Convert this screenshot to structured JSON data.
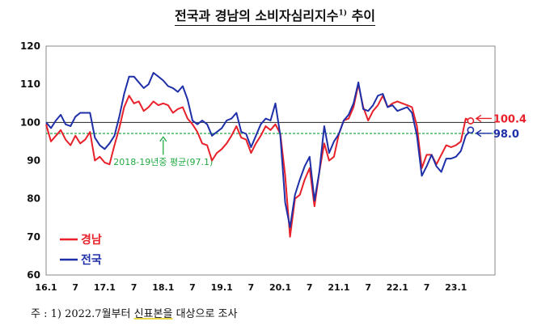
{
  "title": {
    "main": "전국과 경남의 소비자심리지수",
    "sup": "1)",
    "suffix": " 추이"
  },
  "footnote": {
    "prefix": "주 : 1) 2022.7월부터 ",
    "highlight": "신표본을",
    "suffix": " 대상으로 조사"
  },
  "chart_data": {
    "type": "line",
    "ylim": [
      60,
      120
    ],
    "yticks": [
      60,
      70,
      80,
      90,
      100,
      110,
      120
    ],
    "xlabels": [
      "16.1",
      "7",
      "17.1",
      "7",
      "18.1",
      "7",
      "19.1",
      "7",
      "20.1",
      "7",
      "21.1",
      "7",
      "22.1",
      "7",
      "23.1"
    ],
    "xlabel_months": [
      0,
      6,
      12,
      18,
      24,
      30,
      36,
      42,
      48,
      54,
      60,
      66,
      72,
      78,
      84
    ],
    "x_range_months": [
      0,
      92
    ],
    "reference_line": {
      "value": 100
    },
    "average_line": {
      "value": 97.1,
      "label": "2018-19년중 평균(97.1)",
      "color": "#22aa44"
    },
    "end_labels": [
      {
        "series": "경남",
        "value": 100.4,
        "label": "100.4"
      },
      {
        "series": "전국",
        "value": 98.0,
        "label": "98.0"
      }
    ],
    "series": [
      {
        "name": "경남",
        "color": "#e8202a",
        "values": [
          99.5,
          95.0,
          96.5,
          98.0,
          95.5,
          94.0,
          96.5,
          94.5,
          95.5,
          97.5,
          90.0,
          91.0,
          89.5,
          89.0,
          94.0,
          98.5,
          104.0,
          107.0,
          105.0,
          105.5,
          103.0,
          104.0,
          105.5,
          104.5,
          105.0,
          104.5,
          102.5,
          103.5,
          104.0,
          101.0,
          99.5,
          97.5,
          94.5,
          94.0,
          90.0,
          92.0,
          93.0,
          94.5,
          96.5,
          99.0,
          96.0,
          95.5,
          92.0,
          94.5,
          96.5,
          99.0,
          98.0,
          99.5,
          97.0,
          86.0,
          70.0,
          80.0,
          81.0,
          85.0,
          88.0,
          78.0,
          87.0,
          94.5,
          90.0,
          91.0,
          97.0,
          100.5,
          101.0,
          104.0,
          110.0,
          104.0,
          100.5,
          103.0,
          104.5,
          107.0,
          104.0,
          105.0,
          105.5,
          105.0,
          104.5,
          104.0,
          99.0,
          88.0,
          91.5,
          91.5,
          89.0,
          91.5,
          94.0,
          93.5,
          94.0,
          95.0,
          101.0,
          100.4
        ]
      },
      {
        "name": "전국",
        "color": "#1f2fa8",
        "values": [
          100.0,
          98.5,
          100.5,
          102.0,
          99.5,
          99.0,
          101.5,
          102.5,
          102.5,
          102.5,
          96.0,
          94.0,
          93.0,
          94.5,
          96.5,
          101.5,
          107.5,
          112.0,
          112.0,
          110.5,
          109.0,
          110.0,
          113.0,
          112.0,
          111.0,
          109.5,
          109.0,
          108.0,
          109.5,
          106.0,
          100.5,
          99.5,
          100.5,
          99.5,
          96.5,
          97.5,
          98.5,
          100.5,
          101.0,
          102.5,
          97.5,
          97.0,
          93.5,
          96.5,
          99.5,
          101.0,
          100.5,
          105.0,
          96.5,
          79.0,
          72.5,
          81.0,
          85.0,
          88.5,
          91.0,
          79.5,
          87.0,
          99.0,
          92.0,
          95.0,
          97.0,
          100.5,
          102.0,
          105.0,
          110.5,
          103.5,
          103.0,
          104.5,
          107.0,
          107.5,
          104.0,
          104.5,
          103.0,
          103.5,
          104.0,
          102.5,
          96.5,
          86.0,
          88.5,
          91.5,
          88.5,
          87.0,
          90.5,
          90.5,
          91.0,
          92.5,
          96.5,
          98.0
        ]
      }
    ]
  }
}
